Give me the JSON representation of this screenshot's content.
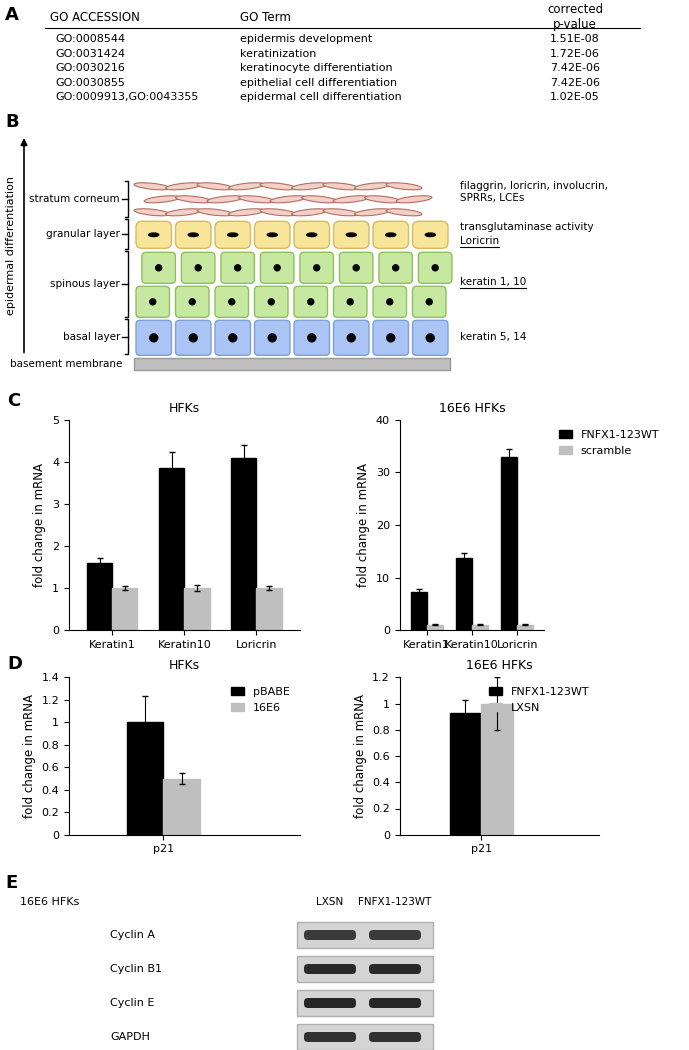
{
  "panel_labels": [
    "A",
    "B",
    "C",
    "D",
    "E"
  ],
  "table": {
    "columns": [
      "GO ACCESSION",
      "GO Term",
      "corrected\np-value"
    ],
    "rows": [
      [
        "GO:0008544",
        "epidermis development",
        "1.51E-08"
      ],
      [
        "GO:0031424",
        "keratinization",
        "1.72E-06"
      ],
      [
        "GO:0030216",
        "keratinocyte differentiation",
        "7.42E-06"
      ],
      [
        "GO:0030855",
        "epithelial cell differentiation",
        "7.42E-06"
      ],
      [
        "GO:0009913,GO:0043355",
        "epidermal cell differentiation",
        "1.02E-05"
      ]
    ]
  },
  "diagram": {
    "axis_label": "epidermal differentiation",
    "base": "basement membrane",
    "layers": [
      {
        "name": "stratum corneum",
        "markers": [
          {
            "text": "filaggrin, loricrin, involucrin,\nSPRRs, LCEs",
            "underlined": false
          }
        ]
      },
      {
        "name": "granular layer",
        "markers": [
          {
            "text": "transglutaminase activity",
            "underlined": false
          },
          {
            "text": "Loricrin",
            "underlined": true
          }
        ]
      },
      {
        "name": "spinous layer",
        "markers": [
          {
            "text": "keratin 1, 10",
            "underlined": true
          }
        ]
      },
      {
        "name": "basal layer",
        "markers": [
          {
            "text": "keratin 5, 14",
            "underlined": false
          }
        ]
      }
    ]
  },
  "chart_data": [
    {
      "type": "bar",
      "title": "HFKs",
      "y_label": "fold change in mRNA",
      "categories": [
        "Keratin1",
        "Keratin10",
        "Loricrin"
      ],
      "series": [
        {
          "color": "#000000",
          "values": [
            1.6,
            3.85,
            4.1
          ],
          "errors": [
            0.12,
            0.38,
            0.3
          ]
        },
        {
          "color": "#bfbfbf",
          "values": [
            1,
            1,
            1
          ],
          "errors": [
            0.05,
            0.08,
            0.05
          ]
        }
      ],
      "ylim": [
        0,
        5
      ],
      "yticks": [
        0,
        1,
        2,
        3,
        4,
        5
      ]
    },
    {
      "type": "bar",
      "title": "16E6 HFKs",
      "y_label": "fold change in mRNA",
      "categories": [
        "Keratin1",
        "Keratin10",
        "Loricrin"
      ],
      "series": [
        {
          "name": "FNFX1-123WT",
          "color": "#000000",
          "values": [
            7.3,
            13.8,
            33
          ],
          "errors": [
            0.5,
            0.8,
            1.5
          ]
        },
        {
          "name": "scramble",
          "color": "#bfbfbf",
          "values": [
            1,
            1,
            1
          ],
          "errors": [
            0.1,
            0.1,
            0.1
          ]
        }
      ],
      "ylim": [
        0,
        40
      ],
      "yticks": [
        0,
        10,
        20,
        30,
        40
      ],
      "legend": "right"
    },
    {
      "type": "bar",
      "title": "HFKs",
      "y_label": "fold change in mRNA",
      "categories": [
        "p21"
      ],
      "series": [
        {
          "name": "pBABE",
          "color": "#000000",
          "values": [
            1.0
          ],
          "errors": [
            0.23
          ]
        },
        {
          "name": "16E6",
          "color": "#bfbfbf",
          "values": [
            0.5
          ],
          "errors": [
            0.05
          ]
        }
      ],
      "ylim": [
        0,
        1.4
      ],
      "yticks": [
        0,
        0.2,
        0.4,
        0.6,
        0.8,
        1,
        1.2,
        1.4
      ],
      "legend": "upper right"
    },
    {
      "type": "bar",
      "title": "16E6 HFKs",
      "y_label": "fold change in mRNA",
      "categories": [
        "p21"
      ],
      "series": [
        {
          "name": "FNFX1-123WT",
          "color": "#000000",
          "values": [
            0.93
          ],
          "errors": [
            0.1
          ]
        },
        {
          "name": "LXSN",
          "color": "#bfbfbf",
          "values": [
            1.0
          ],
          "errors": [
            0.2
          ]
        }
      ],
      "ylim": [
        0,
        1.2
      ],
      "yticks": [
        0,
        0.2,
        0.4,
        0.6,
        0.8,
        1,
        1.2
      ],
      "legend": "upper right"
    }
  ],
  "blot": {
    "title": "16E6 HFKs",
    "lanes": [
      "LXSN",
      "FNFX1-123WT"
    ],
    "rows": [
      "Cyclin A",
      "Cyclin B1",
      "Cyclin E",
      "GAPDH"
    ]
  }
}
